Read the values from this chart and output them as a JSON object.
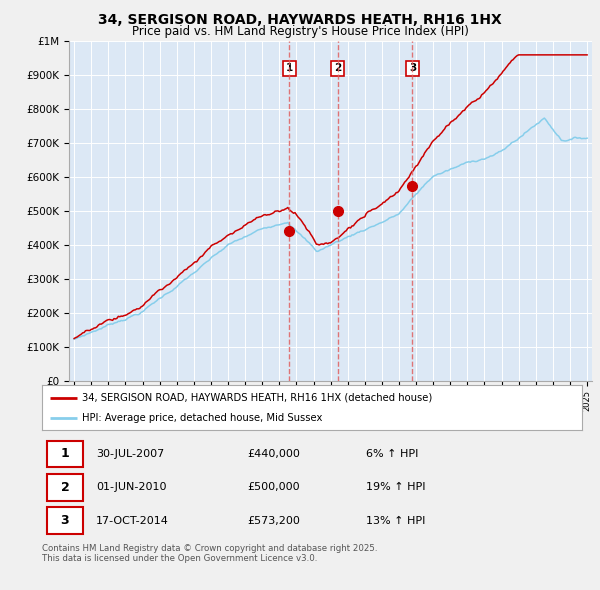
{
  "title": "34, SERGISON ROAD, HAYWARDS HEATH, RH16 1HX",
  "subtitle": "Price paid vs. HM Land Registry's House Price Index (HPI)",
  "ylim": [
    0,
    1000000
  ],
  "yticks": [
    0,
    100000,
    200000,
    300000,
    400000,
    500000,
    600000,
    700000,
    800000,
    900000,
    1000000
  ],
  "ytick_labels": [
    "£0",
    "£100K",
    "£200K",
    "£300K",
    "£400K",
    "£500K",
    "£600K",
    "£700K",
    "£800K",
    "£900K",
    "£1M"
  ],
  "x_start_year": 1995,
  "x_end_year": 2025,
  "red_line_color": "#cc0000",
  "blue_line_color": "#87CEEB",
  "vline_color": "#e06060",
  "sale_dates": [
    2007.58,
    2010.42,
    2014.79
  ],
  "sale_prices": [
    440000,
    500000,
    573200
  ],
  "sale_labels": [
    "1",
    "2",
    "3"
  ],
  "legend_red_label": "34, SERGISON ROAD, HAYWARDS HEATH, RH16 1HX (detached house)",
  "legend_blue_label": "HPI: Average price, detached house, Mid Sussex",
  "table_rows": [
    [
      "1",
      "30-JUL-2007",
      "£440,000",
      "6% ↑ HPI"
    ],
    [
      "2",
      "01-JUN-2010",
      "£500,000",
      "19% ↑ HPI"
    ],
    [
      "3",
      "17-OCT-2014",
      "£573,200",
      "13% ↑ HPI"
    ]
  ],
  "footnote": "Contains HM Land Registry data © Crown copyright and database right 2025.\nThis data is licensed under the Open Government Licence v3.0.",
  "fig_bg_color": "#f0f0f0",
  "plot_bg_color": "#dce8f5"
}
